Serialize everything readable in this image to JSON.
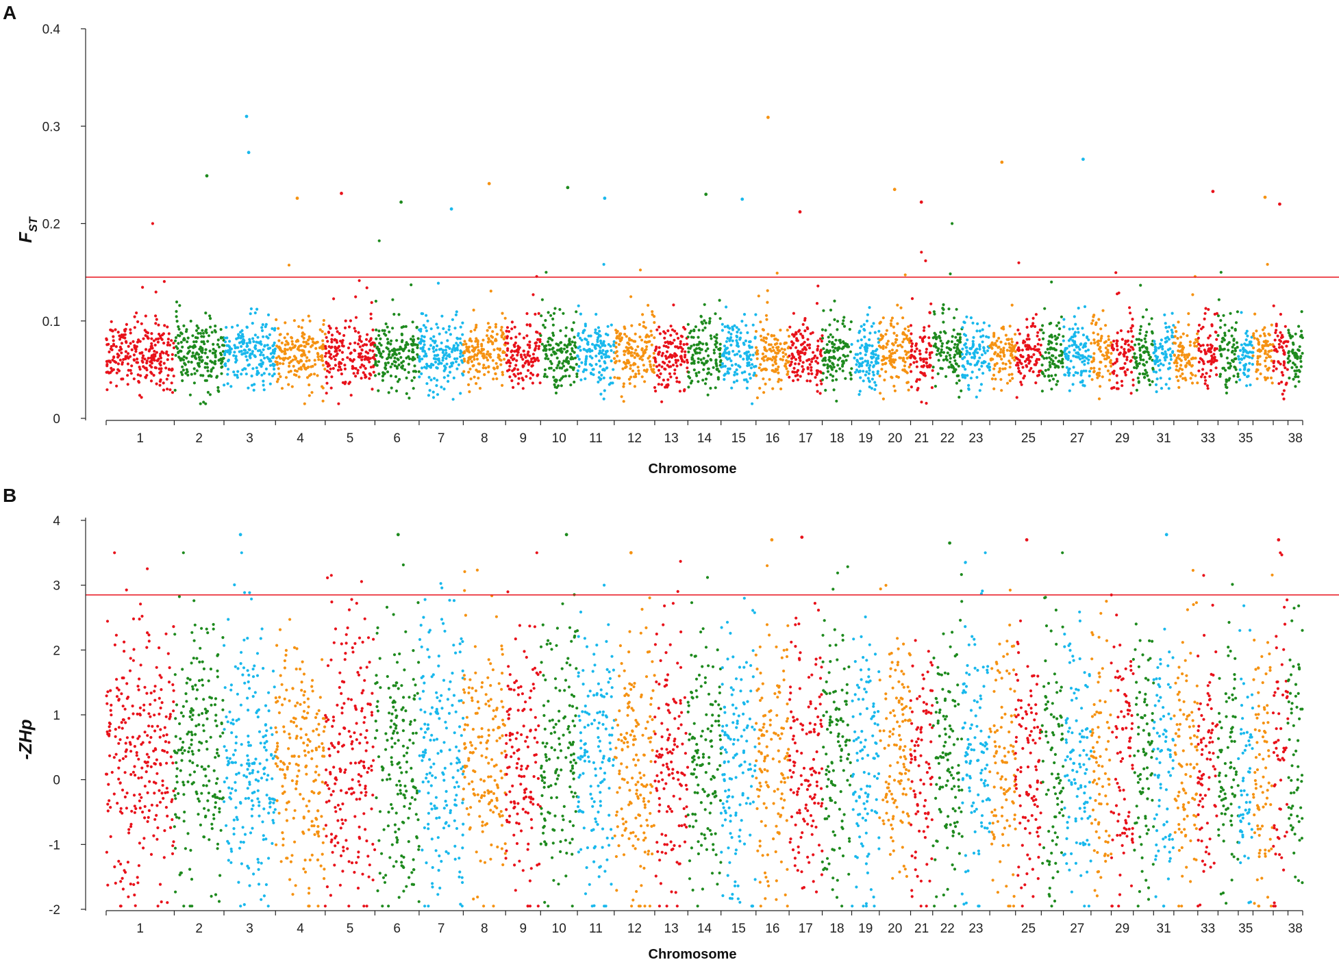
{
  "figure": {
    "colors": [
      "#e8121b",
      "#1e8a1e",
      "#19b8ec",
      "#f59212"
    ],
    "threshold_color": "#e8121b",
    "chromosomes": [
      1,
      2,
      3,
      4,
      5,
      6,
      7,
      8,
      9,
      10,
      11,
      12,
      13,
      14,
      15,
      16,
      17,
      18,
      19,
      20,
      21,
      22,
      23,
      24,
      25,
      26,
      27,
      28,
      29,
      30,
      31,
      32,
      33,
      34,
      35,
      36,
      37,
      38
    ],
    "chromosome_widths": [
      1.85,
      1.35,
      1.4,
      1.35,
      1.35,
      1.2,
      1.2,
      1.15,
      0.95,
      1.0,
      1.0,
      1.1,
      0.9,
      0.9,
      0.95,
      0.9,
      0.9,
      0.8,
      0.75,
      0.85,
      0.6,
      0.8,
      0.75,
      0.7,
      0.7,
      0.6,
      0.75,
      0.55,
      0.6,
      0.55,
      0.55,
      0.65,
      0.55,
      0.55,
      0.4,
      0.55,
      0.4,
      0.4
    ]
  },
  "chart_data": [
    {
      "panel": "A",
      "type": "scatter",
      "title": "",
      "xlabel": "Chromosome",
      "ylabel_main": "F",
      "ylabel_sub": "ST",
      "ylim": [
        0,
        0.4
      ],
      "yticks": [
        "0",
        "0.1",
        "0.2",
        "0.3",
        "0.4"
      ],
      "ytick_values": [
        0,
        0.1,
        0.2,
        0.3,
        0.4
      ],
      "xtick_labels": [
        "1",
        "2",
        "3",
        "4",
        "5",
        "6",
        "7",
        "8",
        "9",
        "10",
        "11",
        "12",
        "13",
        "14",
        "15",
        "16",
        "17",
        "18",
        "19",
        "20",
        "21",
        "22",
        "23",
        "25",
        "27",
        "29",
        "31",
        "33",
        "35",
        "38"
      ],
      "xtick_chroms": [
        1,
        2,
        3,
        4,
        5,
        6,
        7,
        8,
        9,
        10,
        11,
        12,
        13,
        14,
        15,
        16,
        17,
        18,
        19,
        20,
        21,
        22,
        23,
        25,
        27,
        29,
        31,
        33,
        35,
        38
      ],
      "threshold": 0.145,
      "typical_range": [
        0.03,
        0.11
      ],
      "peaks": [
        {
          "chromosome": 2,
          "value": 0.249
        },
        {
          "chromosome": 3,
          "value": 0.273
        },
        {
          "chromosome": 3,
          "value": 0.31
        },
        {
          "chromosome": 4,
          "value": 0.226
        },
        {
          "chromosome": 5,
          "value": 0.231
        },
        {
          "chromosome": 6,
          "value": 0.222
        },
        {
          "chromosome": 7,
          "value": 0.215
        },
        {
          "chromosome": 8,
          "value": 0.241
        },
        {
          "chromosome": 10,
          "value": 0.237
        },
        {
          "chromosome": 11,
          "value": 0.226
        },
        {
          "chromosome": 14,
          "value": 0.23
        },
        {
          "chromosome": 15,
          "value": 0.225
        },
        {
          "chromosome": 16,
          "value": 0.309
        },
        {
          "chromosome": 17,
          "value": 0.212
        },
        {
          "chromosome": 20,
          "value": 0.235
        },
        {
          "chromosome": 21,
          "value": 0.222
        },
        {
          "chromosome": 24,
          "value": 0.263
        },
        {
          "chromosome": 27,
          "value": 0.266
        },
        {
          "chromosome": 33,
          "value": 0.233
        },
        {
          "chromosome": 36,
          "value": 0.227
        },
        {
          "chromosome": 37,
          "value": 0.22
        }
      ]
    },
    {
      "panel": "B",
      "type": "scatter",
      "title": "",
      "xlabel": "Chromosome",
      "ylabel_main": "-ZHp",
      "ylim": [
        -2,
        4
      ],
      "yticks": [
        "-2",
        "-1",
        "0",
        "1",
        "2",
        "3",
        "4"
      ],
      "ytick_values": [
        -2,
        -1,
        0,
        1,
        2,
        3,
        4
      ],
      "xtick_labels": [
        "1",
        "2",
        "3",
        "4",
        "5",
        "6",
        "7",
        "8",
        "9",
        "10",
        "11",
        "12",
        "13",
        "14",
        "15",
        "16",
        "17",
        "18",
        "19",
        "20",
        "21",
        "22",
        "23",
        "25",
        "27",
        "29",
        "31",
        "33",
        "35",
        "38"
      ],
      "xtick_chroms": [
        1,
        2,
        3,
        4,
        5,
        6,
        7,
        8,
        9,
        10,
        11,
        12,
        13,
        14,
        15,
        16,
        17,
        18,
        19,
        20,
        21,
        22,
        23,
        25,
        27,
        29,
        31,
        33,
        35,
        38
      ],
      "threshold": 2.85,
      "typical_range": [
        -1.9,
        3.6
      ],
      "peaks": [
        {
          "chromosome": 3,
          "value": 3.78
        },
        {
          "chromosome": 6,
          "value": 3.78
        },
        {
          "chromosome": 10,
          "value": 3.78
        },
        {
          "chromosome": 12,
          "value": 3.5
        },
        {
          "chromosome": 16,
          "value": 3.7
        },
        {
          "chromosome": 17,
          "value": 3.74
        },
        {
          "chromosome": 22,
          "value": 3.65
        },
        {
          "chromosome": 25,
          "value": 3.7
        },
        {
          "chromosome": 31,
          "value": 3.78
        },
        {
          "chromosome": 37,
          "value": 3.7
        }
      ]
    }
  ]
}
